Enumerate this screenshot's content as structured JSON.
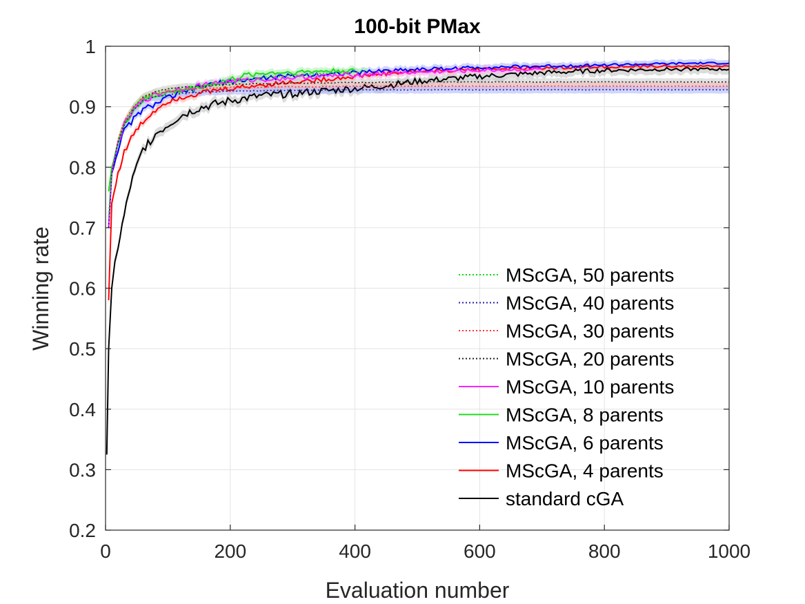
{
  "chart_data": {
    "type": "line",
    "title": "100-bit PMax",
    "xlabel": "Evaluation number",
    "ylabel": "Winning rate",
    "xlim": [
      0,
      1000
    ],
    "ylim": [
      0.2,
      1
    ],
    "xticks": [
      0,
      200,
      400,
      600,
      800,
      1000
    ],
    "yticks": [
      0.2,
      0.3,
      0.4,
      0.5,
      0.6,
      0.7,
      0.8,
      0.9,
      1
    ],
    "xtick_labels": [
      "0",
      "200",
      "400",
      "600",
      "800",
      "1000"
    ],
    "ytick_labels": [
      "0.2",
      "0.3",
      "0.4",
      "0.5",
      "0.6",
      "0.7",
      "0.8",
      "0.9",
      "1"
    ],
    "grid": true,
    "legend_position": "lower-right",
    "series": [
      {
        "name": "MScGA, 50 parents",
        "color": "#00e000",
        "style": "dotted",
        "band": "#a8f0a8",
        "x": [
          5,
          10,
          20,
          30,
          45,
          60,
          80,
          100,
          130,
          160,
          200,
          250,
          300,
          350,
          400,
          420
        ],
        "y": [
          0.72,
          0.8,
          0.84,
          0.87,
          0.9,
          0.915,
          0.922,
          0.925,
          0.93,
          0.935,
          0.94,
          0.948,
          0.952,
          0.955,
          0.958,
          0.959
        ]
      },
      {
        "name": "MScGA, 40 parents",
        "color": "#1f1fb0",
        "style": "dotted",
        "band": "#aab4f8",
        "x": [
          5,
          10,
          20,
          30,
          45,
          60,
          80,
          100,
          150,
          200,
          300,
          400,
          500,
          600,
          700,
          800,
          900,
          1000
        ],
        "y": [
          0.7,
          0.79,
          0.84,
          0.87,
          0.895,
          0.91,
          0.917,
          0.92,
          0.924,
          0.926,
          0.927,
          0.928,
          0.928,
          0.928,
          0.928,
          0.928,
          0.928,
          0.928
        ]
      },
      {
        "name": "MScGA, 30 parents",
        "color": "#ff3030",
        "style": "dotted",
        "band": "#f8b8b8",
        "x": [
          5,
          10,
          20,
          30,
          45,
          60,
          80,
          100,
          150,
          200,
          300,
          400,
          500,
          600,
          700,
          800,
          900,
          1000
        ],
        "y": [
          0.7,
          0.79,
          0.845,
          0.875,
          0.9,
          0.915,
          0.922,
          0.926,
          0.93,
          0.932,
          0.933,
          0.934,
          0.934,
          0.934,
          0.934,
          0.934,
          0.934,
          0.934
        ]
      },
      {
        "name": "MScGA, 20 parents",
        "color": "#202020",
        "style": "dotted",
        "band": "#c8c8c8",
        "x": [
          5,
          10,
          20,
          30,
          45,
          60,
          80,
          100,
          150,
          200,
          300,
          400,
          500,
          600,
          700,
          800,
          900,
          1000
        ],
        "y": [
          0.7,
          0.79,
          0.845,
          0.875,
          0.9,
          0.916,
          0.925,
          0.93,
          0.934,
          0.937,
          0.939,
          0.94,
          0.941,
          0.941,
          0.941,
          0.941,
          0.941,
          0.941
        ]
      },
      {
        "name": "MScGA, 10 parents",
        "color": "#ff20ff",
        "style": "solid",
        "band": "#f8c0f8",
        "x": [
          5,
          10,
          20,
          30,
          45,
          60,
          80,
          100,
          150,
          200,
          300,
          400,
          500,
          600,
          700
        ],
        "y": [
          0.7,
          0.79,
          0.84,
          0.87,
          0.895,
          0.91,
          0.92,
          0.926,
          0.935,
          0.942,
          0.948,
          0.953,
          0.957,
          0.96,
          0.962
        ]
      },
      {
        "name": "MScGA, 8 parents",
        "color": "#20d820",
        "style": "solid",
        "band": "#a8f0a8",
        "x": [
          5,
          10,
          20,
          30,
          45,
          60,
          80,
          100,
          130,
          160,
          200,
          230,
          260,
          300,
          350,
          400
        ],
        "y": [
          0.76,
          0.8,
          0.84,
          0.87,
          0.895,
          0.91,
          0.918,
          0.923,
          0.928,
          0.935,
          0.945,
          0.953,
          0.956,
          0.957,
          0.959,
          0.96
        ]
      },
      {
        "name": "MScGA, 6 parents",
        "color": "#0000ff",
        "style": "solid",
        "band": "#aab4f8",
        "x": [
          5,
          10,
          20,
          30,
          45,
          60,
          80,
          100,
          130,
          160,
          200,
          250,
          300,
          350,
          400,
          450,
          500,
          550,
          600,
          650,
          700,
          750,
          800,
          850,
          900,
          950,
          1000
        ],
        "y": [
          0.7,
          0.79,
          0.83,
          0.86,
          0.88,
          0.895,
          0.905,
          0.915,
          0.925,
          0.935,
          0.942,
          0.947,
          0.951,
          0.954,
          0.956,
          0.96,
          0.962,
          0.963,
          0.965,
          0.966,
          0.967,
          0.968,
          0.969,
          0.97,
          0.971,
          0.972,
          0.972
        ]
      },
      {
        "name": "MScGA, 4 parents",
        "color": "#ff0000",
        "style": "solid",
        "band": "#f8b8b8",
        "x": [
          5,
          10,
          20,
          30,
          45,
          60,
          80,
          100,
          130,
          160,
          200,
          250,
          300,
          350,
          400,
          450,
          500,
          550,
          600,
          650,
          700,
          750,
          800,
          850,
          900,
          950,
          1000
        ],
        "y": [
          0.58,
          0.74,
          0.79,
          0.825,
          0.855,
          0.875,
          0.895,
          0.91,
          0.918,
          0.924,
          0.93,
          0.936,
          0.941,
          0.945,
          0.95,
          0.955,
          0.958,
          0.96,
          0.962,
          0.963,
          0.964,
          0.965,
          0.966,
          0.966,
          0.967,
          0.967,
          0.967
        ]
      },
      {
        "name": "standard cGA",
        "color": "#000000",
        "style": "solid",
        "band": "#bdbdbd",
        "x": [
          2,
          5,
          10,
          15,
          20,
          30,
          40,
          50,
          60,
          80,
          100,
          120,
          150,
          180,
          200,
          250,
          300,
          350,
          400,
          450,
          500,
          550,
          600,
          650,
          700,
          750,
          800,
          850,
          900,
          950,
          1000
        ],
        "y": [
          0.325,
          0.5,
          0.6,
          0.64,
          0.67,
          0.72,
          0.77,
          0.8,
          0.83,
          0.855,
          0.87,
          0.885,
          0.898,
          0.905,
          0.91,
          0.918,
          0.922,
          0.926,
          0.93,
          0.935,
          0.942,
          0.946,
          0.95,
          0.953,
          0.956,
          0.958,
          0.96,
          0.961,
          0.962,
          0.962,
          0.962
        ]
      }
    ]
  }
}
